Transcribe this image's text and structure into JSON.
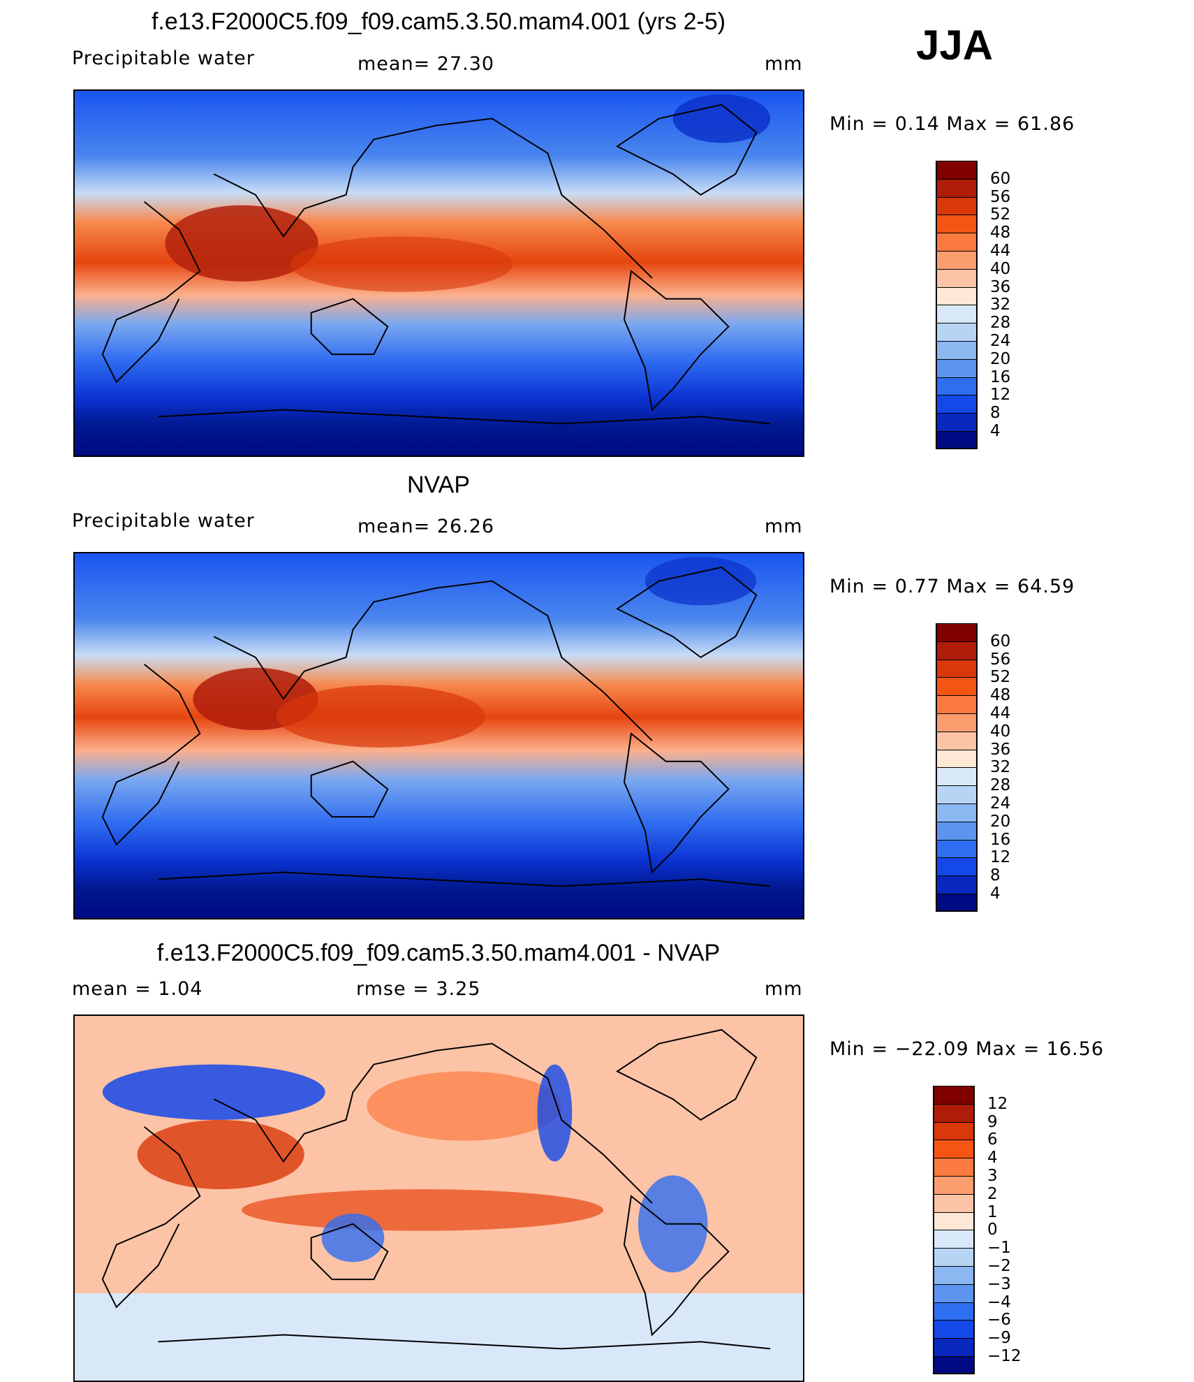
{
  "season": "JJA",
  "panels": [
    {
      "id": "model",
      "title": "f.e13.F2000C5.f09_f09.cam5.3.50.mam4.001 (yrs 2-5)",
      "left_text": "Precipitable  water",
      "mid_text": "mean=   27.30",
      "units": "mm",
      "minmax": "Min  =    0.14  Max  =    61.86",
      "colorbar": {
        "labels": [
          "60",
          "56",
          "52",
          "48",
          "44",
          "40",
          "36",
          "32",
          "28",
          "24",
          "20",
          "16",
          "12",
          "8",
          "4"
        ],
        "colors": [
          "#800000",
          "#b01c0a",
          "#d8380a",
          "#f55514",
          "#fb7a40",
          "#fc9d70",
          "#fdc3a6",
          "#fee8d6",
          "#d8e8f8",
          "#b8d4f5",
          "#8cb8f2",
          "#5c94f0",
          "#2e6ef0",
          "#1448e8",
          "#0828c0",
          "#000a82"
        ]
      }
    },
    {
      "id": "obs",
      "title": "NVAP",
      "left_text": "Precipitable  water",
      "mid_text": "mean=   26.26",
      "units": "mm",
      "minmax": "Min  =    0.77  Max  =    64.59",
      "colorbar": {
        "labels": [
          "60",
          "56",
          "52",
          "48",
          "44",
          "40",
          "36",
          "32",
          "28",
          "24",
          "20",
          "16",
          "12",
          "8",
          "4"
        ],
        "colors": [
          "#800000",
          "#b01c0a",
          "#d8380a",
          "#f55514",
          "#fb7a40",
          "#fc9d70",
          "#fdc3a6",
          "#fee8d6",
          "#d8e8f8",
          "#b8d4f5",
          "#8cb8f2",
          "#5c94f0",
          "#2e6ef0",
          "#1448e8",
          "#0828c0",
          "#000a82"
        ]
      }
    },
    {
      "id": "diff",
      "title": "f.e13.F2000C5.f09_f09.cam5.3.50.mam4.001 - NVAP",
      "left_text": "mean  =     1.04",
      "mid_text": "rmse  =     3.25",
      "units": "mm",
      "minmax": "Min  = −22.09  Max  =    16.56",
      "colorbar": {
        "labels": [
          "12",
          "9",
          "6",
          "4",
          "3",
          "2",
          "1",
          "0",
          "−1",
          "−2",
          "−3",
          "−4",
          "−6",
          "−9",
          "−12"
        ],
        "colors": [
          "#800000",
          "#b01c0a",
          "#d8380a",
          "#f55514",
          "#fb7a40",
          "#fc9d70",
          "#fdc3a6",
          "#fee8d6",
          "#d8e8f8",
          "#b8d4f5",
          "#8cb8f2",
          "#5c94f0",
          "#2e6ef0",
          "#1448e8",
          "#0828c0",
          "#000a82"
        ]
      }
    }
  ]
}
